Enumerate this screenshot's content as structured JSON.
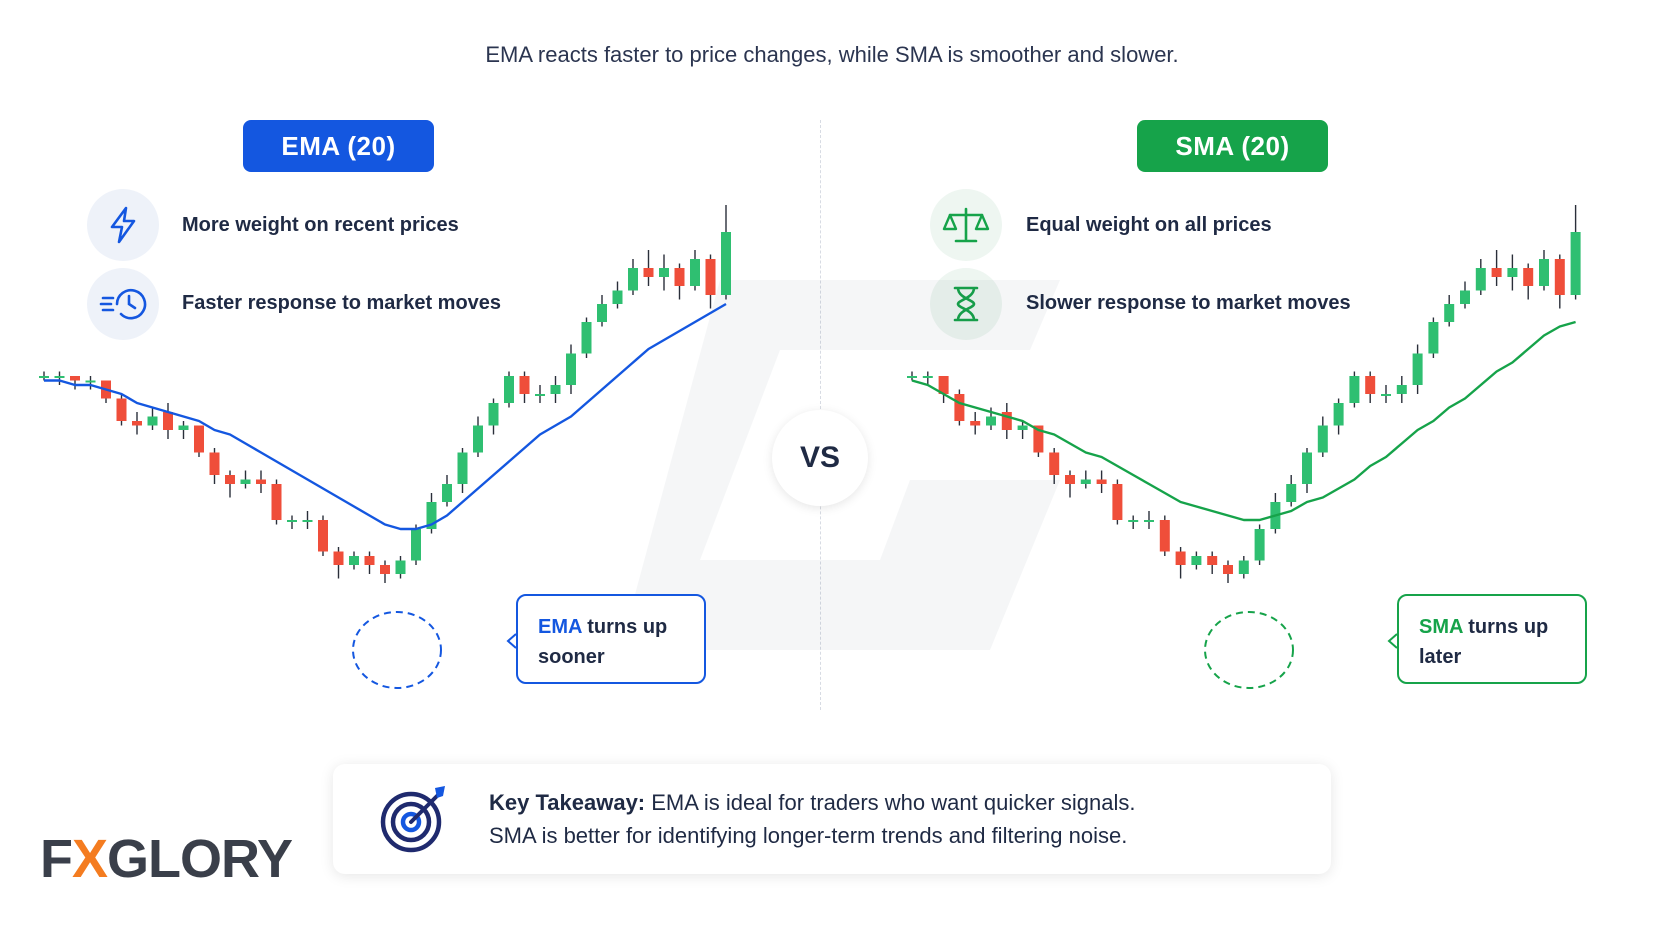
{
  "header": {
    "subtitle": "EMA reacts faster to price changes, while SMA is smoother and slower."
  },
  "ema": {
    "badge": "EMA (20)",
    "features": [
      "More weight on recent prices",
      "Faster response to market moves"
    ],
    "icons": [
      "lightning-icon",
      "clock-speed-icon"
    ],
    "callout_highlight": "EMA",
    "callout_rest": " turns up",
    "callout_line2": "sooner",
    "color": "#1457e0"
  },
  "sma": {
    "badge": "SMA (20)",
    "features": [
      "Equal weight on all prices",
      "Slower response to market moves"
    ],
    "icons": [
      "balance-scale-icon",
      "hourglass-icon"
    ],
    "callout_highlight": "SMA",
    "callout_rest": " turns up",
    "callout_line2": "later",
    "color": "#16a34a"
  },
  "vs_label": "VS",
  "takeaway": {
    "label": "Key Takeaway:",
    "line1": " EMA is ideal for traders who want quicker signals.",
    "line2": "SMA is better for identifying longer-term trends and filtering noise.",
    "icon": "target-icon"
  },
  "logo": {
    "part1": "F",
    "accent": "X",
    "part2": "GLORY",
    "accent_color": "#f47c20"
  },
  "colors": {
    "bull": "#2fbf71",
    "bear": "#ef4e3a"
  },
  "chart_data": [
    {
      "type": "candlestick",
      "title": "",
      "xlabel": "",
      "ylabel": "",
      "ylim": [
        0,
        100
      ],
      "candles": [
        [
          72,
          72,
          71,
          73
        ],
        [
          72,
          72,
          70,
          73
        ],
        [
          72,
          71,
          69,
          72
        ],
        [
          71,
          71,
          69,
          72
        ],
        [
          71,
          67,
          66,
          71
        ],
        [
          67,
          62,
          61,
          68
        ],
        [
          62,
          61,
          59,
          64
        ],
        [
          61,
          63,
          60,
          65
        ],
        [
          64,
          60,
          58,
          66
        ],
        [
          60,
          61,
          58,
          62
        ],
        [
          61,
          55,
          54,
          61
        ],
        [
          55,
          50,
          48,
          56
        ],
        [
          50,
          48,
          45,
          51
        ],
        [
          48,
          49,
          47,
          51
        ],
        [
          49,
          48,
          46,
          51
        ],
        [
          48,
          40,
          39,
          49
        ],
        [
          40,
          40,
          38,
          41
        ],
        [
          40,
          40,
          38,
          42
        ],
        [
          40,
          33,
          32,
          41
        ],
        [
          33,
          30,
          27,
          34
        ],
        [
          30,
          32,
          29,
          33
        ],
        [
          32,
          30,
          28,
          33
        ],
        [
          30,
          28,
          26,
          31
        ],
        [
          28,
          31,
          27,
          32
        ],
        [
          31,
          38,
          30,
          39
        ],
        [
          38,
          44,
          37,
          46
        ],
        [
          44,
          48,
          43,
          50
        ],
        [
          48,
          55,
          46,
          56
        ],
        [
          55,
          61,
          54,
          63
        ],
        [
          61,
          66,
          59,
          67
        ],
        [
          66,
          72,
          65,
          73
        ],
        [
          72,
          68,
          66,
          73
        ],
        [
          68,
          68,
          66,
          70
        ],
        [
          68,
          70,
          66,
          72
        ],
        [
          70,
          77,
          68,
          79
        ],
        [
          77,
          84,
          76,
          85
        ],
        [
          84,
          88,
          83,
          90
        ],
        [
          88,
          91,
          87,
          93
        ],
        [
          91,
          96,
          90,
          98
        ],
        [
          96,
          94,
          92,
          100
        ],
        [
          94,
          96,
          91,
          99
        ],
        [
          96,
          92,
          89,
          97
        ],
        [
          92,
          98,
          91,
          100
        ],
        [
          98,
          90,
          87,
          99
        ],
        [
          90,
          104,
          89,
          110
        ]
      ],
      "series": [
        {
          "name": "EMA",
          "values": [
            71,
            71,
            70,
            70,
            69,
            68,
            66,
            65,
            64,
            63,
            62,
            60,
            59,
            57,
            55,
            53,
            51,
            49,
            47,
            45,
            43,
            41,
            39,
            38,
            38,
            39,
            41,
            44,
            47,
            50,
            53,
            56,
            59,
            61,
            63,
            66,
            69,
            72,
            75,
            78,
            80,
            82,
            84,
            86,
            88
          ]
        }
      ]
    },
    {
      "type": "candlestick",
      "title": "",
      "xlabel": "",
      "ylabel": "",
      "ylim": [
        0,
        100
      ],
      "candles": [
        [
          72,
          72,
          71,
          73
        ],
        [
          72,
          72,
          70,
          73
        ],
        [
          72,
          68,
          66,
          72
        ],
        [
          68,
          62,
          61,
          69
        ],
        [
          62,
          61,
          59,
          64
        ],
        [
          61,
          63,
          60,
          65
        ],
        [
          64,
          60,
          58,
          66
        ],
        [
          60,
          61,
          58,
          62
        ],
        [
          61,
          55,
          54,
          61
        ],
        [
          55,
          50,
          48,
          56
        ],
        [
          50,
          48,
          45,
          51
        ],
        [
          48,
          49,
          47,
          51
        ],
        [
          49,
          48,
          46,
          51
        ],
        [
          48,
          40,
          39,
          49
        ],
        [
          40,
          40,
          38,
          41
        ],
        [
          40,
          40,
          38,
          42
        ],
        [
          40,
          33,
          32,
          41
        ],
        [
          33,
          30,
          27,
          34
        ],
        [
          30,
          32,
          29,
          33
        ],
        [
          32,
          30,
          28,
          33
        ],
        [
          30,
          28,
          26,
          31
        ],
        [
          28,
          31,
          27,
          32
        ],
        [
          31,
          38,
          30,
          39
        ],
        [
          38,
          44,
          37,
          46
        ],
        [
          44,
          48,
          43,
          50
        ],
        [
          48,
          55,
          46,
          56
        ],
        [
          55,
          61,
          54,
          63
        ],
        [
          61,
          66,
          59,
          67
        ],
        [
          66,
          72,
          65,
          73
        ],
        [
          72,
          68,
          66,
          73
        ],
        [
          68,
          68,
          66,
          70
        ],
        [
          68,
          70,
          66,
          72
        ],
        [
          70,
          77,
          68,
          79
        ],
        [
          77,
          84,
          76,
          85
        ],
        [
          84,
          88,
          83,
          90
        ],
        [
          88,
          91,
          87,
          93
        ],
        [
          91,
          96,
          90,
          98
        ],
        [
          96,
          94,
          92,
          100
        ],
        [
          94,
          96,
          91,
          99
        ],
        [
          96,
          92,
          89,
          97
        ],
        [
          92,
          98,
          91,
          100
        ],
        [
          98,
          90,
          87,
          99
        ],
        [
          90,
          104,
          89,
          110
        ]
      ],
      "series": [
        {
          "name": "SMA",
          "values": [
            71,
            70,
            68,
            66,
            65,
            64,
            63,
            62,
            60,
            59,
            57,
            55,
            54,
            52,
            50,
            48,
            46,
            44,
            43,
            42,
            41,
            40,
            40,
            41,
            42,
            44,
            45,
            47,
            49,
            52,
            54,
            57,
            60,
            62,
            65,
            67,
            70,
            73,
            75,
            78,
            81,
            83,
            84
          ]
        }
      ]
    }
  ]
}
